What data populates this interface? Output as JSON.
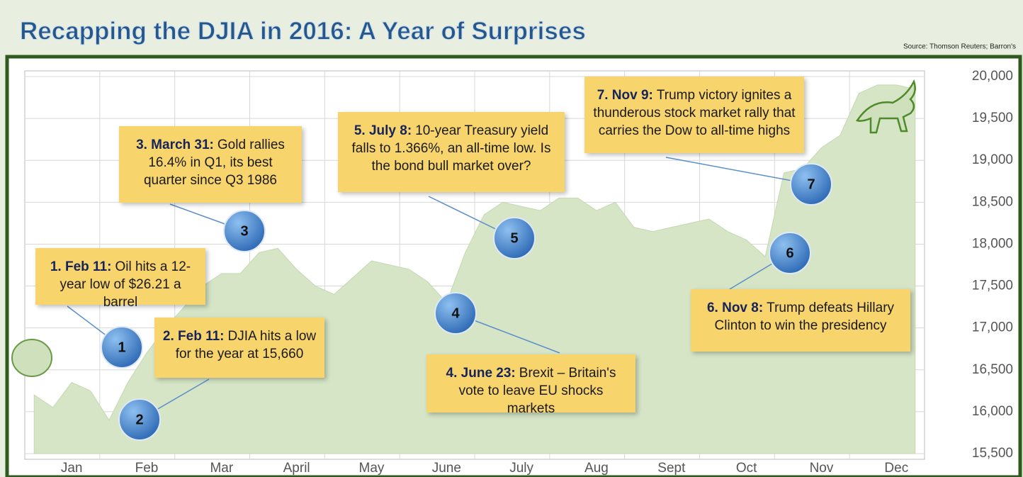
{
  "chart_data": {
    "type": "area",
    "title": "Recapping the DJIA in 2016: A Year of Surprises",
    "source": "Source: Thomson Reuters; Barron's",
    "color": "#d5e5c6",
    "grid": true,
    "categories": [
      null,
      null,
      "Jan",
      null,
      null,
      null,
      "Feb",
      null,
      null,
      null,
      "Mar",
      null,
      null,
      null,
      "April",
      null,
      null,
      null,
      "May",
      null,
      null,
      null,
      "June",
      null,
      null,
      null,
      "July",
      null,
      null,
      null,
      "Aug",
      null,
      null,
      null,
      "Sept",
      null,
      null,
      null,
      "Oct",
      null,
      null,
      null,
      "Nov",
      null,
      null,
      null,
      "Dec",
      null
    ],
    "values": [
      16200,
      16050,
      16350,
      16250,
      15900,
      16350,
      16700,
      17000,
      17250,
      17500,
      17650,
      17650,
      17900,
      17950,
      17700,
      17500,
      17400,
      17600,
      17800,
      17750,
      17700,
      17550,
      17300,
      17900,
      18350,
      18500,
      18450,
      18400,
      18550,
      18550,
      18400,
      18500,
      18200,
      18150,
      18200,
      18250,
      18300,
      18150,
      18050,
      17850,
      18850,
      18900,
      19150,
      19300,
      19800,
      19900,
      19900,
      19850
    ],
    "ylim": [
      15500,
      20000
    ],
    "yticks": [
      {
        "value": 15500,
        "label": "15,500"
      },
      {
        "value": 16000,
        "label": "16,000"
      },
      {
        "value": 16500,
        "label": "16,500"
      },
      {
        "value": 17000,
        "label": "17,000"
      },
      {
        "value": 17500,
        "label": "17,500"
      },
      {
        "value": 18000,
        "label": "18,000"
      },
      {
        "value": 18500,
        "label": "18,500"
      },
      {
        "value": 19000,
        "label": "19,000"
      },
      {
        "value": 19500,
        "label": "19,500"
      },
      {
        "value": 20000,
        "label": "20,000"
      }
    ],
    "annotations": [
      {
        "marker": "1",
        "heading": "1. Feb 11:",
        "text": "Oil hits a 12-year low of $26.21 a barrel"
      },
      {
        "marker": "2",
        "heading": "2. Feb 11:",
        "text": "DJIA hits a low for the year at 15,660"
      },
      {
        "marker": "3",
        "heading": "3. March 31:",
        "text": "Gold rallies 16.4% in Q1, its best quarter since Q3 1986"
      },
      {
        "marker": "4",
        "heading": "4. June 23:",
        "text": "Brexit – Britain's vote to leave EU shocks markets"
      },
      {
        "marker": "5",
        "heading": "5. July 8:",
        "text": "10-year Treasury yield falls to 1.366%, an all-time low. Is the bond bull market over?"
      },
      {
        "marker": "6",
        "heading": "6. Nov 8:",
        "text": "Trump defeats Hillary Clinton to win the presidency"
      },
      {
        "marker": "7",
        "heading": "7. Nov 9:",
        "text": "Trump victory ignites a thunderous stock market rally that carries the Dow to all-time highs"
      }
    ]
  }
}
